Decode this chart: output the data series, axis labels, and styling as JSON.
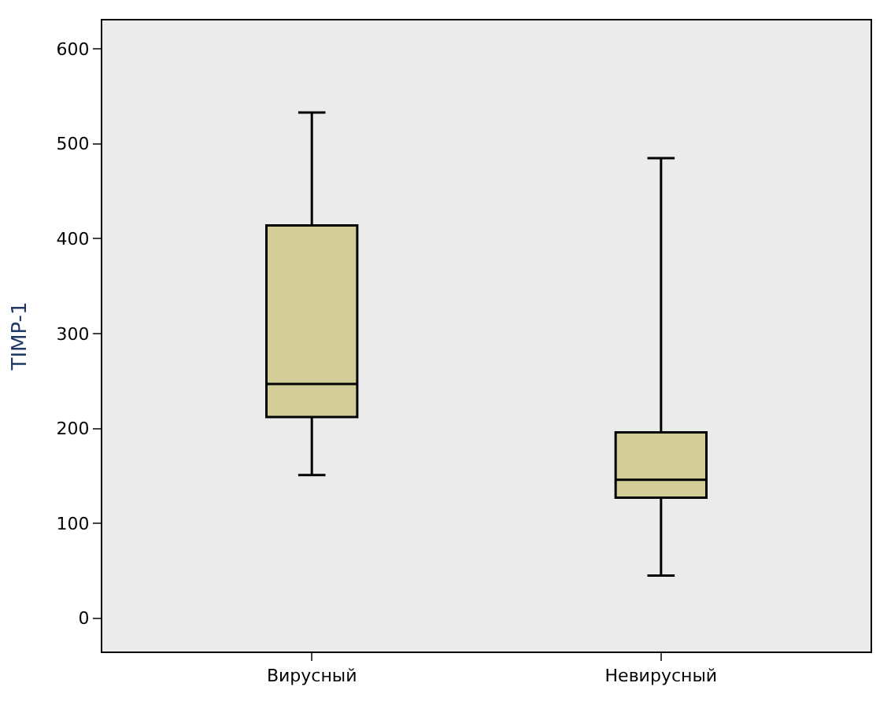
{
  "chart_data": {
    "type": "box",
    "ylabel": "TIMP-1",
    "categories": [
      "Вирусный",
      "Невирусный"
    ],
    "boxes": [
      {
        "low": 151,
        "q1": 212,
        "median": 247,
        "q3": 414,
        "high": 533
      },
      {
        "low": 45,
        "q1": 127,
        "median": 146,
        "q3": 196,
        "high": 485
      }
    ],
    "color": "#d3ce98",
    "ylim": [
      -35,
      630
    ],
    "yticks": [
      0,
      100,
      200,
      300,
      400,
      500,
      600
    ]
  }
}
